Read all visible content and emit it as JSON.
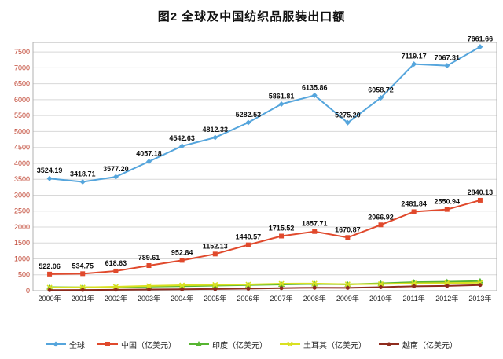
{
  "title": "图2 全球及中国纺织品服装出口额",
  "chart_data": {
    "type": "line",
    "categories": [
      "2000年",
      "2001年",
      "2002年",
      "2003年",
      "2004年",
      "2005年",
      "2006年",
      "2007年",
      "2008年",
      "2009年",
      "2010年",
      "2011年",
      "2012年",
      "2013年"
    ],
    "series": [
      {
        "id": "global",
        "name": "全球",
        "color": "#55a5dc",
        "marker": "diamond",
        "show_labels": true,
        "values": [
          3524.19,
          3418.71,
          3577.2,
          4057.18,
          4542.63,
          4812.33,
          5282.53,
          5861.81,
          6135.86,
          5275.2,
          6058.72,
          7119.17,
          7067.31,
          7661.66
        ]
      },
      {
        "id": "china",
        "name": "中国（亿美元）",
        "color": "#e0492c",
        "marker": "square",
        "show_labels": true,
        "values": [
          522.06,
          534.75,
          618.63,
          789.61,
          952.84,
          1152.13,
          1440.57,
          1715.52,
          1857.71,
          1670.87,
          2066.92,
          2481.84,
          2550.94,
          2840.13
        ]
      },
      {
        "id": "india",
        "name": "印度（亿美元）",
        "color": "#57b531",
        "marker": "triangle",
        "show_labels": false,
        "values": [
          110,
          106,
          112,
          130,
          142,
          160,
          178,
          198,
          212,
          202,
          232,
          268,
          282,
          302
        ]
      },
      {
        "id": "turkey",
        "name": "土耳其（亿美元）",
        "color": "#d9e021",
        "marker": "cross",
        "show_labels": false,
        "values": [
          100,
          104,
          122,
          150,
          172,
          186,
          196,
          222,
          226,
          204,
          212,
          232,
          242,
          252
        ]
      },
      {
        "id": "vietnam",
        "name": "越南（亿美元）",
        "color": "#8f2c1e",
        "marker": "circle",
        "show_labels": false,
        "values": [
          19,
          21,
          27,
          36,
          44,
          52,
          64,
          81,
          94,
          90,
          112,
          140,
          152,
          179
        ]
      }
    ],
    "ylim": [
      0,
      7800
    ],
    "ytick_step": 500,
    "ytick_max": 7500,
    "grid": true,
    "legend_position": "bottom",
    "colors": {
      "grid_line": "#d8d8d8",
      "plot_border": "#b0b0b0",
      "ytick_label": "#c14836",
      "xtick_label": "#222222",
      "data_label": "#111111",
      "title": "#111111"
    }
  }
}
